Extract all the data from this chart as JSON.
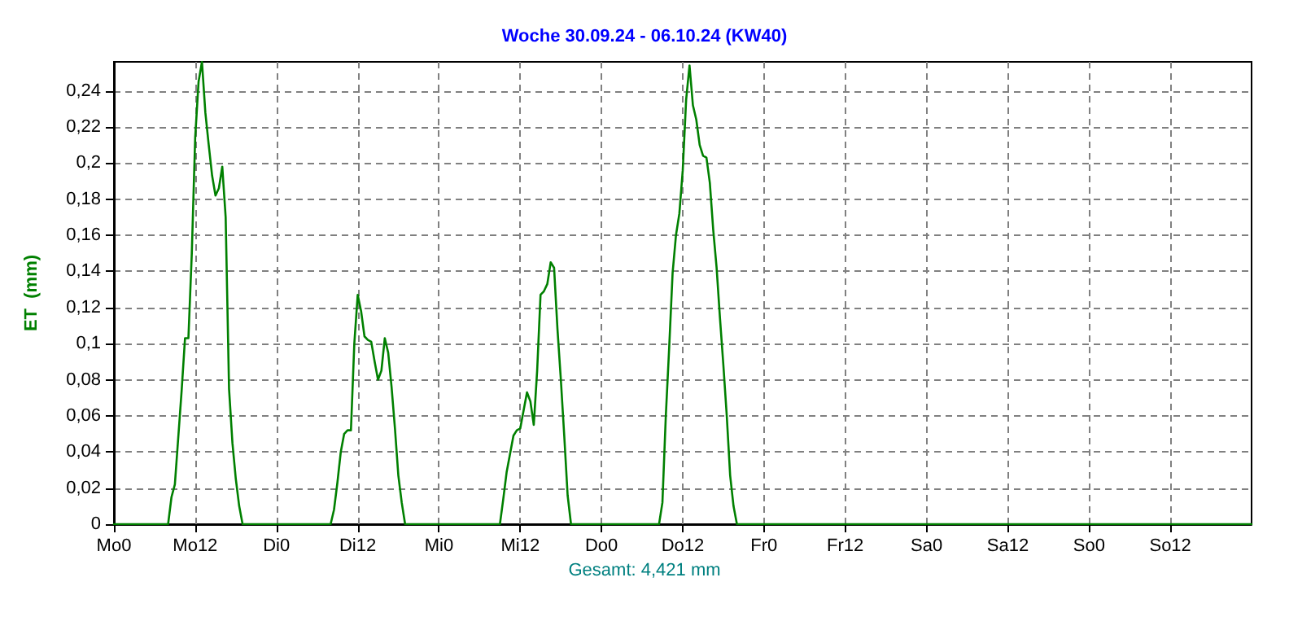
{
  "chart_data": {
    "type": "line",
    "title": "Woche 30.09.24 - 06.10.24 (KW40)",
    "ylabel": "ET  (mm)",
    "annotations": [
      "Gesamt: 4,421 mm"
    ],
    "categories": [
      "Mo0",
      null,
      null,
      null,
      null,
      null,
      null,
      null,
      null,
      null,
      null,
      null,
      null,
      null,
      null,
      null,
      null,
      null,
      null,
      null,
      null,
      null,
      null,
      null,
      "Mo12",
      null,
      null,
      null,
      null,
      null,
      null,
      null,
      null,
      null,
      null,
      null,
      null,
      null,
      null,
      null,
      null,
      null,
      null,
      null,
      null,
      null,
      null,
      null,
      "Di0",
      null,
      null,
      null,
      null,
      null,
      null,
      null,
      null,
      null,
      null,
      null,
      null,
      null,
      null,
      null,
      null,
      null,
      null,
      null,
      null,
      null,
      null,
      null,
      "Di12",
      null,
      null,
      null,
      null,
      null,
      null,
      null,
      null,
      null,
      null,
      null,
      null,
      null,
      null,
      null,
      null,
      null,
      null,
      null,
      null,
      null,
      null,
      null,
      "Mi0",
      null,
      null,
      null,
      null,
      null,
      null,
      null,
      null,
      null,
      null,
      null,
      null,
      null,
      null,
      null,
      null,
      null,
      null,
      null,
      null,
      null,
      null,
      null,
      "Mi12",
      null,
      null,
      null,
      null,
      null,
      null,
      null,
      null,
      null,
      null,
      null,
      null,
      null,
      null,
      null,
      null,
      null,
      null,
      null,
      null,
      null,
      null,
      null,
      "Do0",
      null,
      null,
      null,
      null,
      null,
      null,
      null,
      null,
      null,
      null,
      null,
      null,
      null,
      null,
      null,
      null,
      null,
      null,
      null,
      null,
      null,
      null,
      null,
      "Do12",
      null,
      null,
      null,
      null,
      null,
      null,
      null,
      null,
      null,
      null,
      null,
      null,
      null,
      null,
      null,
      null,
      null,
      null,
      null,
      null,
      null,
      null,
      null,
      "Fr0",
      null,
      null,
      null,
      null,
      null,
      null,
      null,
      null,
      null,
      null,
      null,
      null,
      null,
      null,
      null,
      null,
      null,
      null,
      null,
      null,
      null,
      null,
      null,
      "Fr12",
      null,
      null,
      null,
      null,
      null,
      null,
      null,
      null,
      null,
      null,
      null,
      null,
      null,
      null,
      null,
      null,
      null,
      null,
      null,
      null,
      null,
      null,
      null,
      "Sa0",
      null,
      null,
      null,
      null,
      null,
      null,
      null,
      null,
      null,
      null,
      null,
      null,
      null,
      null,
      null,
      null,
      null,
      null,
      null,
      null,
      null,
      null,
      null,
      "Sa12",
      null,
      null,
      null,
      null,
      null,
      null,
      null,
      null,
      null,
      null,
      null,
      null,
      null,
      null,
      null,
      null,
      null,
      null,
      null,
      null,
      null,
      null,
      null,
      "So0",
      null,
      null,
      null,
      null,
      null,
      null,
      null,
      null,
      null,
      null,
      null,
      null,
      null,
      null,
      null,
      null,
      null,
      null,
      null,
      null,
      null,
      null,
      null,
      "So12",
      null,
      null,
      null,
      null,
      null,
      null,
      null,
      null,
      null,
      null,
      null,
      null,
      null,
      null,
      null,
      null,
      null,
      null,
      null,
      null,
      null,
      null,
      null,
      null
    ],
    "series": [
      {
        "color": "#008000",
        "values": [
          0,
          0,
          0,
          0,
          0,
          0,
          0,
          0,
          0,
          0,
          0,
          0,
          0,
          0,
          0,
          0,
          0,
          0.015,
          0.022,
          0.048,
          0.074,
          0.103,
          0.103,
          0.15,
          0.214,
          0.245,
          0.256,
          0.228,
          0.21,
          0.193,
          0.182,
          0.186,
          0.198,
          0.17,
          0.075,
          0.045,
          0.025,
          0.01,
          0,
          0,
          0,
          0,
          0,
          0,
          0,
          0,
          0,
          0,
          0,
          0,
          0,
          0,
          0,
          0,
          0,
          0,
          0,
          0,
          0,
          0,
          0,
          0,
          0,
          0,
          0,
          0.008,
          0.023,
          0.04,
          0.05,
          0.052,
          0.052,
          0.1,
          0.127,
          0.118,
          0.104,
          0.102,
          0.101,
          0.09,
          0.08,
          0.085,
          0.103,
          0.095,
          0.076,
          0.053,
          0.027,
          0.012,
          0,
          0,
          0,
          0,
          0,
          0,
          0,
          0,
          0,
          0,
          0,
          0,
          0,
          0,
          0,
          0,
          0,
          0,
          0,
          0,
          0,
          0,
          0,
          0,
          0,
          0,
          0,
          0,
          0,
          0.014,
          0.029,
          0.039,
          0.049,
          0.052,
          0.053,
          0.063,
          0.073,
          0.068,
          0.055,
          0.085,
          0.127,
          0.129,
          0.133,
          0.145,
          0.142,
          0.108,
          0.08,
          0.049,
          0.016,
          0,
          0,
          0,
          0,
          0,
          0,
          0,
          0,
          0,
          0,
          0,
          0,
          0,
          0,
          0,
          0,
          0,
          0,
          0,
          0,
          0,
          0,
          0,
          0,
          0,
          0,
          0,
          0.012,
          0.06,
          0.098,
          0.139,
          0.16,
          0.172,
          0.196,
          0.235,
          0.254,
          0.232,
          0.224,
          0.21,
          0.204,
          0.203,
          0.189,
          0.163,
          0.142,
          0.114,
          0.088,
          0.06,
          0.027,
          0.01,
          0,
          0,
          0,
          0,
          0,
          0,
          0,
          0,
          0,
          0,
          0,
          0,
          0,
          0,
          0,
          0,
          0,
          0,
          0,
          0,
          0,
          0,
          0,
          0,
          0,
          0,
          0,
          0,
          0,
          0,
          0,
          0,
          0,
          0,
          0,
          0,
          0,
          0,
          0,
          0,
          0,
          0,
          0,
          0,
          0,
          0,
          0,
          0,
          0,
          0,
          0,
          0,
          0,
          0,
          0,
          0,
          0,
          0,
          0,
          0,
          0,
          0,
          0,
          0,
          0,
          0,
          0,
          0,
          0,
          0,
          0,
          0,
          0,
          0,
          0,
          0,
          0,
          0,
          0,
          0,
          0,
          0,
          0,
          0,
          0,
          0,
          0,
          0,
          0,
          0,
          0,
          0,
          0,
          0,
          0,
          0,
          0,
          0,
          0,
          0,
          0,
          0,
          0,
          0,
          0,
          0,
          0,
          0,
          0,
          0,
          0,
          0,
          0,
          0,
          0,
          0,
          0,
          0,
          0,
          0,
          0,
          0,
          0,
          0,
          0,
          0,
          0,
          0,
          0,
          0,
          0,
          0,
          0,
          0,
          0,
          0,
          0,
          0,
          0,
          0,
          0,
          0,
          0,
          0,
          0,
          0,
          0,
          0,
          0,
          0,
          0,
          0,
          0
        ]
      }
    ],
    "ylim": [
      0,
      0.256
    ],
    "yticks": [
      {
        "value": 0,
        "label": "0"
      },
      {
        "value": 0.02,
        "label": "0,02"
      },
      {
        "value": 0.04,
        "label": "0,04"
      },
      {
        "value": 0.06,
        "label": "0,06"
      },
      {
        "value": 0.08,
        "label": "0,08"
      },
      {
        "value": 0.1,
        "label": "0,1"
      },
      {
        "value": 0.12,
        "label": "0,12"
      },
      {
        "value": 0.14,
        "label": "0,14"
      },
      {
        "value": 0.16,
        "label": "0,16"
      },
      {
        "value": 0.18,
        "label": "0,18"
      },
      {
        "value": 0.2,
        "label": "0,2"
      },
      {
        "value": 0.22,
        "label": "0,22"
      },
      {
        "value": 0.24,
        "label": "0,24"
      }
    ],
    "grid": true,
    "marker": "none",
    "line_style": "solid"
  }
}
